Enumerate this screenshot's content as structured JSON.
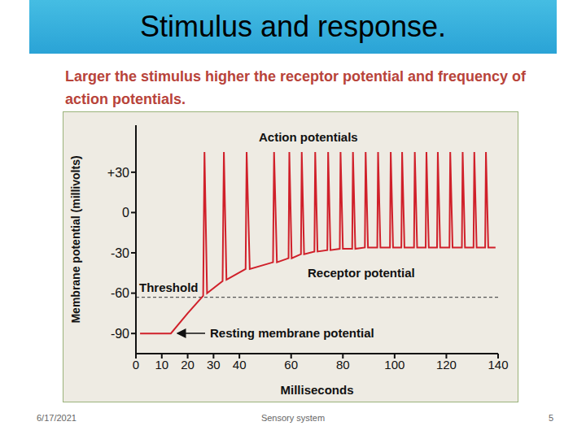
{
  "slide": {
    "title": "Stimulus and response.",
    "subtitle": "Larger the stimulus higher the receptor potential and frequency of action potentials.",
    "footer": {
      "date": "6/17/2021",
      "text": "Sensory system",
      "page": 5
    }
  },
  "chart_data": {
    "type": "line",
    "x_label": "Milliseconds",
    "y_label": "Membrane potential (millivolts)",
    "color": "#d0202a",
    "x": [
      1.6,
      13.5,
      20,
      26,
      26.5,
      27.5,
      33.5,
      34,
      35,
      42.4,
      42.8,
      44,
      53,
      53.4,
      54.5,
      59,
      59.3,
      60.2,
      63.8,
      64.1,
      65,
      69,
      69.3,
      70.2,
      74,
      74.3,
      75.2,
      78.8,
      79.1,
      80,
      83.6,
      83.9,
      84.8,
      88.5,
      88.8,
      89.7,
      93.3,
      93.6,
      94.5,
      98.2,
      98.5,
      99.4,
      102.6,
      102.9,
      103.8,
      107.5,
      107.8,
      108.7,
      112,
      112.3,
      113.2,
      116.4,
      116.7,
      117.6,
      121.2,
      121.5,
      122.4,
      126,
      126.3,
      127.2,
      130.5,
      130.8,
      131.7,
      135,
      135.3,
      136.2,
      139
    ],
    "values": [
      -90,
      -90,
      -75,
      -62,
      45,
      -60,
      -51,
      45,
      -50,
      -42,
      45,
      -42,
      -37,
      45,
      -37,
      -34,
      45,
      -34,
      -31,
      45,
      -31,
      -29,
      45,
      -29,
      -28,
      45,
      -28,
      -27,
      45,
      -27,
      -27,
      45,
      -27,
      -26,
      45,
      -26,
      -26,
      45,
      -26,
      -26,
      45,
      -26,
      -26,
      45,
      -26,
      -26,
      45,
      -26,
      -26,
      45,
      -26,
      -26,
      45,
      -26,
      -26,
      45,
      -26,
      -26,
      45,
      -26,
      -26,
      45,
      -26,
      -26,
      45,
      -26,
      -26
    ],
    "xlim": [
      0,
      140
    ],
    "xticks": [
      0,
      10,
      20,
      30,
      40,
      60,
      80,
      100,
      120,
      140
    ],
    "ylim": [
      -105,
      65
    ],
    "yticks": [
      {
        "value": 30,
        "label": "+30"
      },
      0,
      -30,
      -60,
      -90
    ],
    "grid": false,
    "annotations": [
      {
        "text": "Action potentials"
      },
      {
        "text": "Receptor potential"
      },
      {
        "text": "Threshold",
        "y": -63
      },
      {
        "text": "Resting membrane potential"
      }
    ]
  }
}
